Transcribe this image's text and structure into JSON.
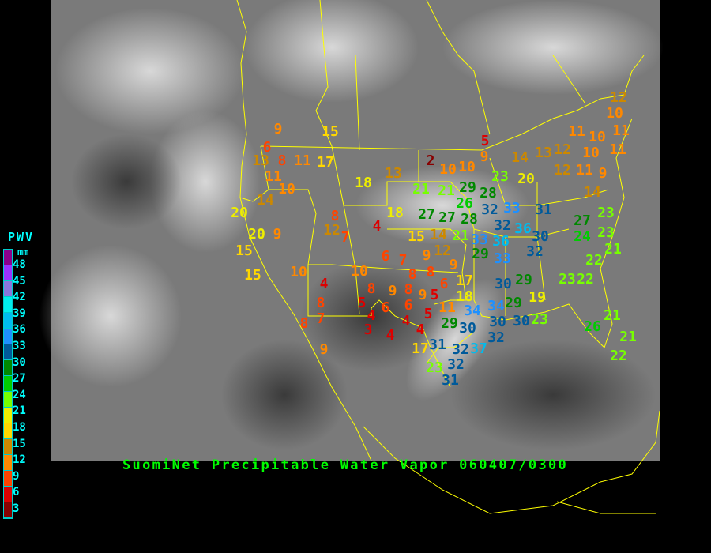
{
  "title": "SuomiNet Precipitable Water Vapor 060407/0300",
  "legend": {
    "title": "PWV",
    "unit": "mm",
    "labels": [
      "48",
      "45",
      "42",
      "39",
      "36",
      "33",
      "30",
      "27",
      "24",
      "21",
      "18",
      "15",
      "12",
      "9",
      "6",
      "3"
    ],
    "colors": [
      "#8b008b",
      "#9933ff",
      "#8877dd",
      "#00eeee",
      "#00bbee",
      "#1e90ff",
      "#005a9a",
      "#008800",
      "#00cc00",
      "#77ff00",
      "#eeee00",
      "#ffd700",
      "#cc8800",
      "#ff8800",
      "#ff4400",
      "#dd0000",
      "#880000"
    ]
  },
  "stations": [
    "6",
    "9",
    "13",
    "8",
    "11",
    "17",
    "11",
    "10",
    "14",
    "20",
    "20",
    "9",
    "15",
    "15",
    "10",
    "15",
    "18",
    "13",
    "2",
    "10",
    "10",
    "5",
    "9",
    "23",
    "20",
    "14",
    "13",
    "12",
    "11",
    "12",
    "11",
    "10",
    "10",
    "11",
    "10",
    "12",
    "11",
    "9",
    "14",
    "27",
    "24",
    "23",
    "23",
    "21",
    "22",
    "23",
    "22",
    "21",
    "26",
    "21",
    "22",
    "21",
    "21",
    "29",
    "28",
    "26",
    "32",
    "33",
    "31",
    "32",
    "36",
    "27",
    "27",
    "28",
    "18",
    "15",
    "14",
    "21",
    "12",
    "33",
    "36",
    "30",
    "29",
    "33",
    "32",
    "9",
    "4",
    "12",
    "7",
    "8",
    "6",
    "7",
    "9",
    "8",
    "8",
    "10",
    "6",
    "17",
    "18",
    "4",
    "8",
    "7",
    "8",
    "9",
    "5",
    "8",
    "9",
    "6",
    "8",
    "9",
    "6",
    "5",
    "5",
    "4",
    "4",
    "4",
    "3",
    "4",
    "11",
    "34",
    "34",
    "29",
    "30",
    "32",
    "30",
    "37",
    "31",
    "32",
    "17",
    "23",
    "32",
    "31",
    "30",
    "29",
    "29",
    "19",
    "30",
    "23"
  ]
}
